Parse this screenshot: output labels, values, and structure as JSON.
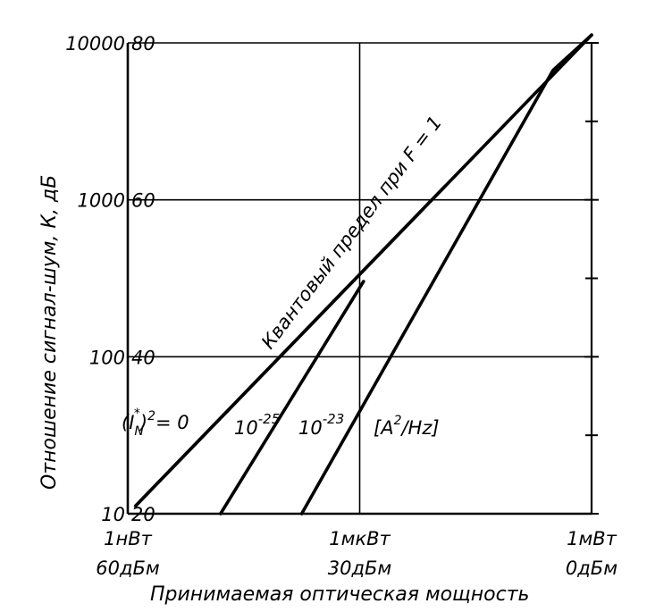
{
  "chart_data": {
    "type": "line",
    "title": "",
    "xlabel": "Принимаемая оптическая мощность",
    "ylabel": "Отношение сигнал-шум, К, дБ",
    "x_scale": "log",
    "y_scale": "log",
    "xlim_dbm": [
      -60,
      0
    ],
    "ylim_db": [
      20,
      80
    ],
    "grid": true,
    "x_ticks": [
      {
        "dbm": -60,
        "top": "1нВт",
        "bottom": "60дБм"
      },
      {
        "dbm": -30,
        "top": "1мкВт",
        "bottom": "30дБм"
      },
      {
        "dbm": 0,
        "top": "1мВт",
        "bottom": "0дБм"
      }
    ],
    "y_ticks": [
      {
        "db": 20,
        "ratio": "10",
        "db_label": "20"
      },
      {
        "db": 40,
        "ratio": "100",
        "db_label": "40"
      },
      {
        "db": 60,
        "ratio": "1000",
        "db_label": "60"
      },
      {
        "db": 80,
        "ratio": "10000",
        "db_label": "80"
      }
    ],
    "y_minor_ticks_db": [
      30,
      50,
      70
    ],
    "series": [
      {
        "name": "Квантовый предел при F=1",
        "points": [
          {
            "x": -59,
            "y": 21
          },
          {
            "x": 0,
            "y": 81
          }
        ]
      },
      {
        "name": "(I_N*)^2=0",
        "points": [
          {
            "x": -59,
            "y": 21
          },
          {
            "x": -19,
            "y": 61.7
          }
        ]
      },
      {
        "name": "10^-25",
        "points": [
          {
            "x": -48,
            "y": 20
          },
          {
            "x": -29.5,
            "y": 49.6
          }
        ]
      },
      {
        "name": "10^-23",
        "points": [
          {
            "x": -37.5,
            "y": 20
          },
          {
            "x": -5,
            "y": 76.5
          },
          {
            "x": 0,
            "y": 81
          }
        ]
      }
    ],
    "annotations": {
      "quantum_limit": "Квантовый предел при F = 1",
      "label_zero_base": "(I",
      "label_zero_sub": "N",
      "label_zero_sup": "*",
      "label_zero_rest": ")",
      "label_zero_exp": "2",
      "label_zero_tail": "= 0",
      "label_m25_base": "10",
      "label_m25_exp": "-25",
      "label_m23_base": "10",
      "label_m23_exp": "-23",
      "unit_open": "[A",
      "unit_exp": "2",
      "unit_close": "/Hz]"
    }
  }
}
